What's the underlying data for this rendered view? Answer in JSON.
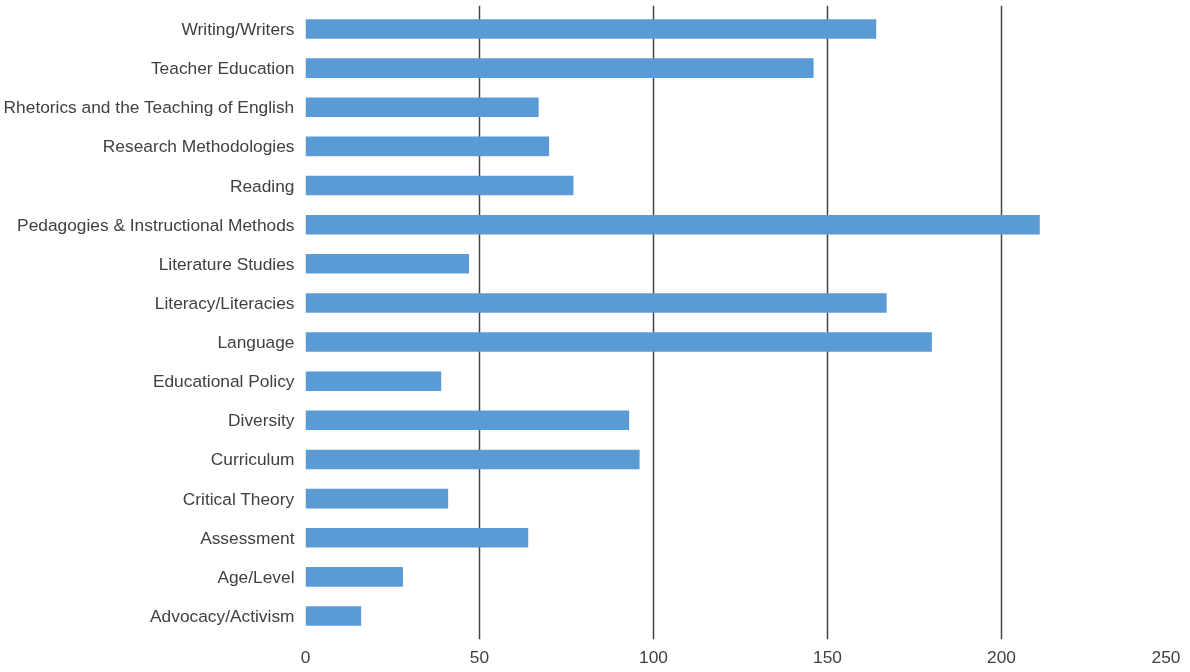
{
  "chart_data": {
    "type": "bar",
    "orientation": "horizontal",
    "categories": [
      "Writing/Writers",
      "Teacher Education",
      "Rhetorics and the Teaching of English",
      "Research Methodologies",
      "Reading",
      "Pedagogies & Instructional Methods",
      "Literature Studies",
      "Literacy/Literacies",
      "Language",
      "Educational Policy",
      "Diversity",
      "Curriculum",
      "Critical Theory",
      "Assessment",
      "Age/Level",
      "Advocacy/Activism"
    ],
    "values": [
      164,
      146,
      67,
      70,
      77,
      211,
      47,
      167,
      180,
      39,
      93,
      96,
      41,
      64,
      28,
      16
    ],
    "color": "#5b9bd5",
    "xlim": [
      0,
      250
    ],
    "xticks": [
      0,
      50,
      100,
      150,
      200,
      250
    ],
    "grid": "x"
  }
}
